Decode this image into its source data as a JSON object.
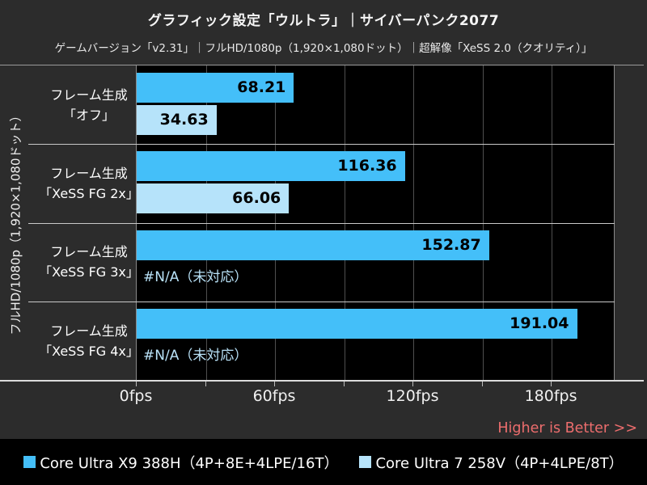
{
  "header": {
    "title": "グラフィック設定「ウルトラ」｜サイバーパンク2077",
    "subtitle": "ゲームバージョン「v2.31」｜フルHD/1080p（1,920×1,080ドット）｜超解像「XeSS 2.0（クオリティ）」"
  },
  "chart_data": {
    "type": "bar",
    "orientation": "horizontal",
    "title": "グラフィック設定「ウルトラ」｜サイバーパンク2077",
    "subtitle": "ゲームバージョン「v2.31」｜フルHD/1080p（1,920×1,080ドット）｜超解像「XeSS 2.0（クオリティ）」",
    "ylabel": "フルHD/1080p（1,920×1,080ドット）",
    "categories": [
      {
        "line1": "フレーム生成",
        "line2": "「オフ」"
      },
      {
        "line1": "フレーム生成",
        "line2": "「XeSS FG 2x」"
      },
      {
        "line1": "フレーム生成",
        "line2": "「XeSS FG 3x」"
      },
      {
        "line1": "フレーム生成",
        "line2": "「XeSS FG 4x」"
      }
    ],
    "series": [
      {
        "name": "Core Ultra X9 388H（4P+8E+4LPE/16T）",
        "color": "#44bff9",
        "values": [
          68.21,
          116.36,
          152.87,
          191.04
        ]
      },
      {
        "name": "Core Ultra 7 258V（4P+4LPE/8T）",
        "color": "#b6e3fa",
        "values": [
          34.63,
          66.06,
          null,
          null
        ],
        "na_label": "#N/A（未対応）"
      }
    ],
    "x_tick_labels": [
      "0fps",
      "60fps",
      "120fps",
      "180fps"
    ],
    "xlim": [
      0,
      207
    ],
    "gridline_interval": 30,
    "unit": "fps",
    "grid": true,
    "legend_position": "bottom",
    "note": "Higher is Better >>"
  }
}
